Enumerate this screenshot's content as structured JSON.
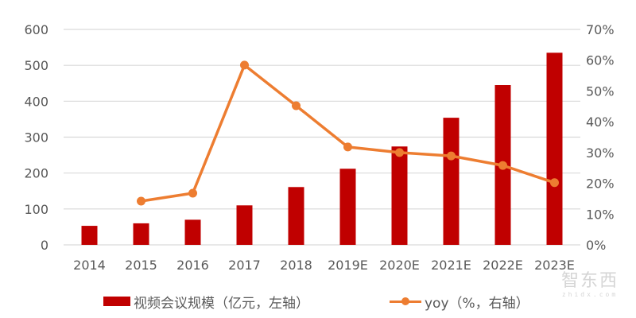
{
  "chart_data": {
    "type": "bar+line",
    "title": "",
    "categories": [
      "2014",
      "2015",
      "2016",
      "2017",
      "2018",
      "2019E",
      "2020E",
      "2021E",
      "2022E",
      "2023E"
    ],
    "series": [
      {
        "name": "视频会议规模（亿元，左轴）",
        "type": "bar",
        "axis": "left",
        "color": "#C00000",
        "values": [
          53,
          60,
          70,
          110,
          161,
          212,
          274,
          354,
          445,
          535
        ]
      },
      {
        "name": "yoy（%，右轴）",
        "type": "line",
        "axis": "right",
        "color": "#ED7D31",
        "values": [
          null,
          14.2,
          16.8,
          58.4,
          45.2,
          31.8,
          30.0,
          28.9,
          25.8,
          20.2
        ]
      }
    ],
    "left_axis": {
      "ylim": [
        0,
        600
      ],
      "ticks": [
        0,
        100,
        200,
        300,
        400,
        500,
        600
      ],
      "tick_labels": [
        "0",
        "100",
        "200",
        "300",
        "400",
        "500",
        "600"
      ]
    },
    "right_axis": {
      "ylim": [
        0,
        70
      ],
      "ticks": [
        0,
        10,
        20,
        30,
        40,
        50,
        60,
        70
      ],
      "tick_labels": [
        "0%",
        "10%",
        "20%",
        "30%",
        "40%",
        "50%",
        "60%",
        "70%"
      ]
    },
    "xlabel": "",
    "ylabel": "",
    "grid": true,
    "legend_position": "bottom"
  },
  "legend": {
    "bar_label": "视频会议规模（亿元，左轴）",
    "line_label": "yoy（%，右轴）"
  },
  "colors": {
    "bar": "#C00000",
    "line": "#ED7D31",
    "grid": "#D9D9D9",
    "tick_text": "#595959"
  },
  "watermark": {
    "main": "智东西",
    "sub": "zhidx.com"
  }
}
